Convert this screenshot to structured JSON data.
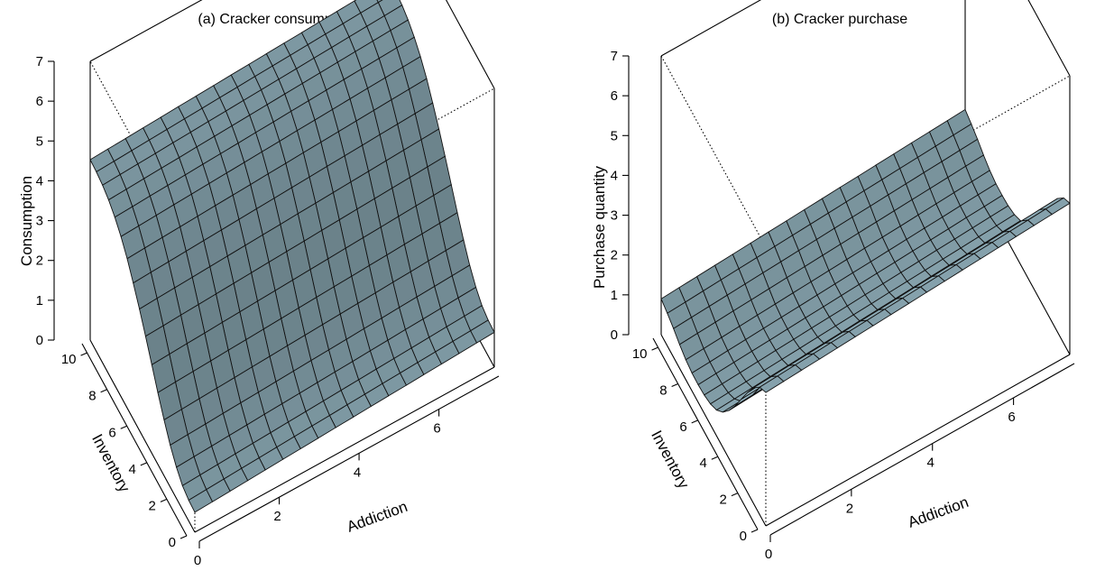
{
  "chart_data": [
    {
      "type": "surface3d",
      "title": "(a) Cracker consumption",
      "zlabel": "Consumption",
      "xlabel": "Addiction",
      "ylabel": "Inventory",
      "xlim": [
        0,
        7.5
      ],
      "ylim": [
        0,
        10.5
      ],
      "zlim": [
        0,
        7
      ],
      "x_ticks": [
        "2",
        "4",
        "6"
      ],
      "x_tick_values": [
        2,
        4,
        6
      ],
      "y_ticks": [
        "0",
        "2",
        "4",
        "6",
        "8",
        "10"
      ],
      "y_tick_values": [
        0,
        2,
        4,
        6,
        8,
        10
      ],
      "z_ticks": [
        "0",
        "1",
        "2",
        "3",
        "4",
        "5",
        "6",
        "7"
      ],
      "z_tick_values": [
        0,
        1,
        2,
        3,
        4,
        5,
        6,
        7
      ],
      "x_origin_label": "0",
      "grid": {
        "nx": 18,
        "ny": 18
      },
      "surface": {
        "inventory": [
          0,
          0.62,
          1.24,
          1.85,
          2.47,
          3.09,
          3.71,
          4.32,
          4.94,
          5.56,
          6.18,
          6.79,
          7.41,
          8.03,
          8.65,
          9.26,
          9.88,
          10.5
        ],
        "consumption_by_inventory": [
          0.5,
          0.52,
          0.6,
          0.78,
          1.05,
          1.4,
          1.8,
          2.22,
          2.65,
          3.05,
          3.42,
          3.75,
          4.02,
          4.22,
          4.37,
          4.46,
          4.51,
          4.53
        ],
        "addiction_effect": 0.05
      },
      "colors": {
        "surface": "#7e99a3",
        "mesh": "#111111",
        "box": "#000000"
      }
    },
    {
      "type": "surface3d",
      "title": "(b) Cracker purchase",
      "zlabel": "Purchase quantity",
      "xlabel": "Addiction",
      "ylabel": "Inventory",
      "xlim": [
        0,
        7.5
      ],
      "ylim": [
        0,
        10.5
      ],
      "zlim": [
        0,
        7
      ],
      "x_ticks": [
        "2",
        "4",
        "6"
      ],
      "x_tick_values": [
        2,
        4,
        6
      ],
      "y_ticks": [
        "0",
        "2",
        "4",
        "6",
        "8",
        "10"
      ],
      "y_tick_values": [
        0,
        2,
        4,
        6,
        8,
        10
      ],
      "z_ticks": [
        "0",
        "1",
        "2",
        "3",
        "4",
        "5",
        "6",
        "7"
      ],
      "z_tick_values": [
        0,
        1,
        2,
        3,
        4,
        5,
        6,
        7
      ],
      "x_origin_label": "0",
      "grid": {
        "nx": 18,
        "ny": 18
      },
      "surface": {
        "inventory": [
          0,
          0.62,
          1.24,
          1.85,
          2.47,
          3.09,
          3.71,
          4.32,
          4.94,
          5.56,
          6.18,
          6.79,
          7.41,
          8.03,
          8.65,
          9.26,
          9.88,
          10.5
        ],
        "purchase_by_inventory": [
          3.35,
          3.2,
          2.9,
          2.5,
          2.05,
          1.6,
          1.2,
          0.88,
          0.65,
          0.52,
          0.46,
          0.44,
          0.45,
          0.5,
          0.6,
          0.72,
          0.82,
          0.9
        ],
        "addiction_effect": 0.06
      },
      "colors": {
        "surface": "#7e99a3",
        "mesh": "#111111",
        "box": "#000000"
      }
    }
  ]
}
